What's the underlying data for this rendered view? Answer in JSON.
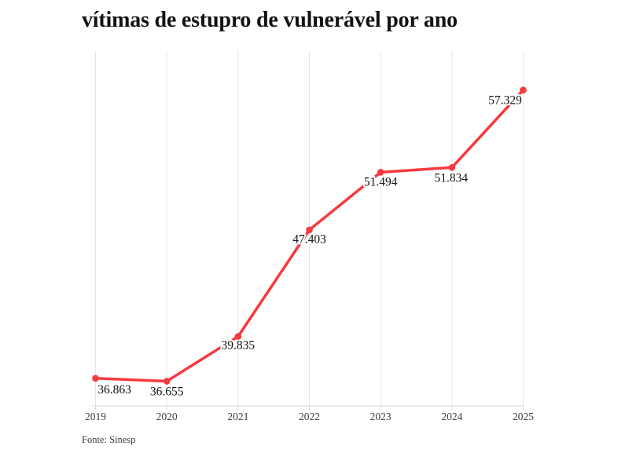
{
  "chart_data": {
    "type": "line",
    "title": "vítimas de estupro de vulnerável por ano",
    "categories": [
      "2019",
      "2020",
      "2021",
      "2022",
      "2023",
      "2024",
      "2025"
    ],
    "series": [
      {
        "name": "vítimas de estupro de vulnerável",
        "values": [
          36863,
          36655,
          39835,
          47403,
          51494,
          51834,
          57329
        ]
      }
    ],
    "point_labels": [
      "36.863",
      "36.655",
      "39.835",
      "47.403",
      "51.494",
      "51.834",
      "57.329"
    ],
    "xlabel": "",
    "ylabel": "",
    "ylim": [
      34900,
      60100
    ],
    "grid": "vertical-only",
    "legend": "none",
    "line_color": "#f63a3e",
    "marker_color": "#f63a3e",
    "source": "Fonte: Sinesp"
  }
}
